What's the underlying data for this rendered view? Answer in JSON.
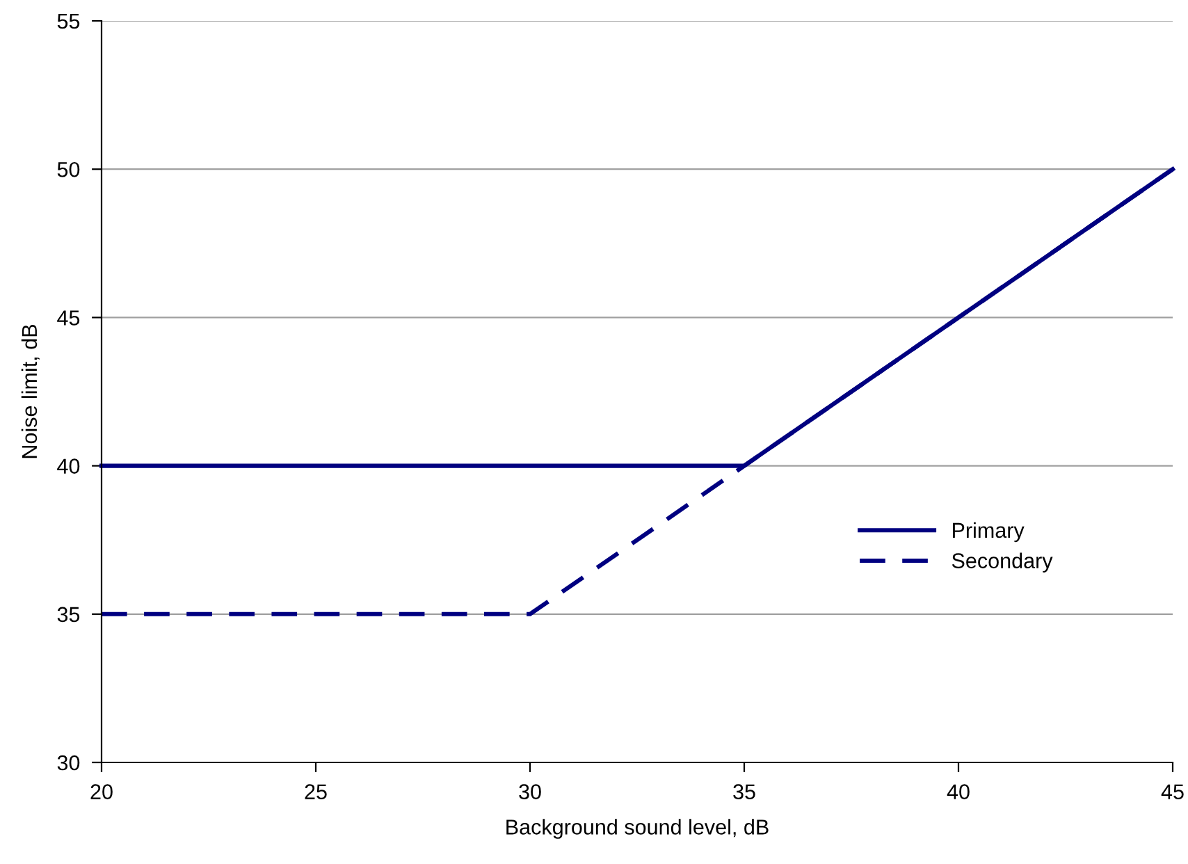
{
  "chart_data": {
    "type": "line",
    "xlabel": "Background sound level, dB",
    "ylabel": "Noise limit, dB",
    "xlim": [
      20,
      45
    ],
    "xticks": [
      20,
      25,
      30,
      35,
      40,
      45
    ],
    "ylim": [
      30,
      55
    ],
    "yticks": [
      30,
      35,
      40,
      45,
      50,
      55
    ],
    "grid": "y",
    "legend": "right",
    "marker": "none",
    "series": [
      {
        "name": "Primary",
        "color": "#000080",
        "x": [
          20,
          35,
          45
        ],
        "values": [
          40,
          40,
          50
        ],
        "line_style": "solid"
      },
      {
        "name": "Secondary",
        "color": "#000080",
        "x": [
          20,
          30,
          45
        ],
        "values": [
          35,
          35,
          50
        ],
        "line_style": "dashed"
      }
    ]
  }
}
